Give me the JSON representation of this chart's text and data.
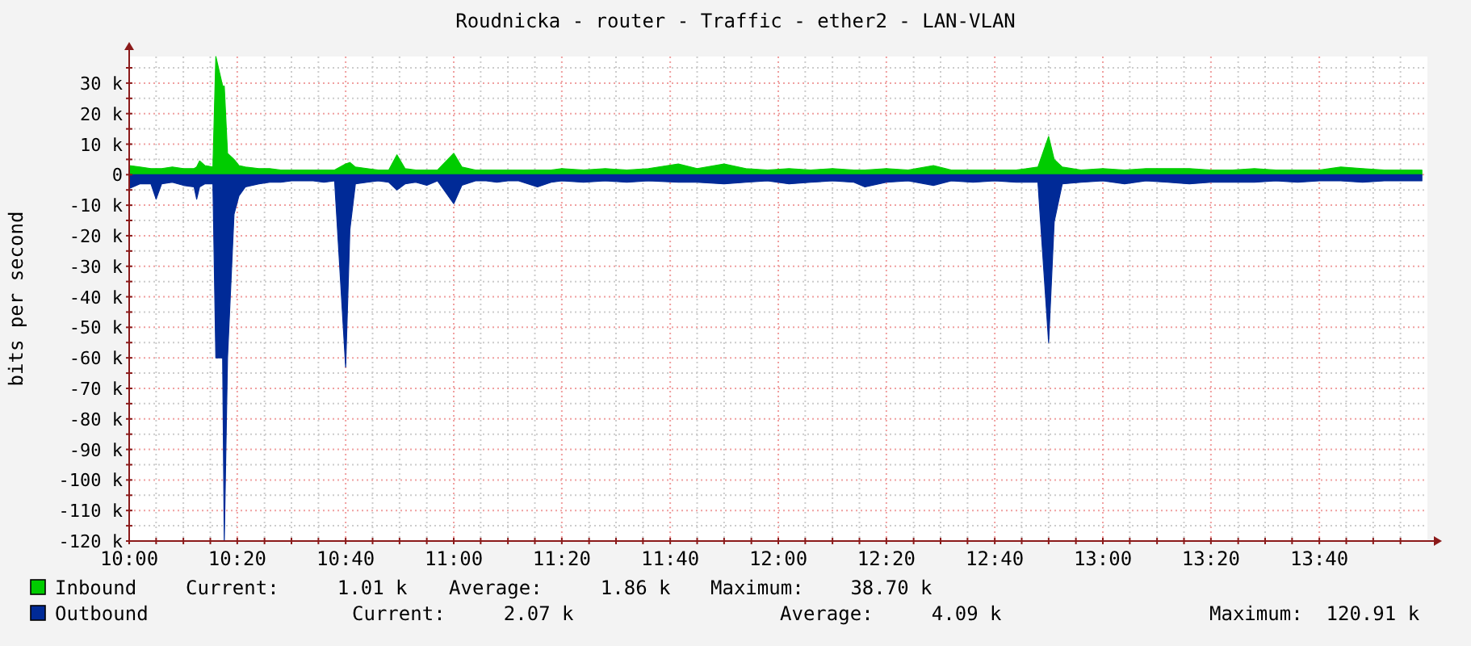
{
  "chart_data": {
    "type": "area",
    "title": "Roudnicka - router - Traffic - ether2 - LAN-VLAN",
    "ylabel": "bits per second",
    "x": [
      10,
      10.033,
      10.067,
      10.083,
      10.1,
      10.133,
      10.167,
      10.2,
      10.208,
      10.217,
      10.233,
      10.258,
      10.267,
      10.288,
      10.293,
      10.303,
      10.323,
      10.338,
      10.358,
      10.4,
      10.433,
      10.467,
      10.5,
      10.533,
      10.567,
      10.6,
      10.633,
      10.667,
      10.68,
      10.697,
      10.733,
      10.767,
      10.8,
      10.825,
      10.85,
      10.883,
      10.917,
      10.95,
      11,
      11.025,
      11.067,
      11.1,
      11.133,
      11.167,
      11.2,
      11.258,
      11.3,
      11.333,
      11.4,
      11.467,
      11.533,
      11.6,
      11.692,
      11.75,
      11.833,
      11.9,
      11.967,
      12.033,
      12.1,
      12.167,
      12.233,
      12.267,
      12.333,
      12.4,
      12.478,
      12.533,
      12.6,
      12.667,
      12.733,
      12.8,
      12.833,
      12.85,
      12.875,
      12.933,
      13,
      13.067,
      13.133,
      13.2,
      13.267,
      13.333,
      13.4,
      13.467,
      13.533,
      13.6,
      13.667,
      13.733,
      13.8,
      13.867,
      13.933,
      13.983
    ],
    "series": [
      {
        "name": "Inbound",
        "color": "#00cc00",
        "values": [
          3000,
          2500,
          2000,
          2000,
          2000,
          2500,
          2000,
          2000,
          2500,
          4500,
          3000,
          2500,
          38700,
          29000,
          29000,
          7000,
          5000,
          3000,
          2500,
          2000,
          2000,
          1500,
          1500,
          1500,
          1500,
          1500,
          1500,
          3500,
          4000,
          2500,
          2000,
          1500,
          1500,
          6500,
          2000,
          1500,
          1500,
          1500,
          7000,
          2500,
          1500,
          1500,
          1500,
          1500,
          1500,
          1500,
          1500,
          2000,
          1500,
          2000,
          1500,
          2000,
          3500,
          2000,
          3500,
          2000,
          1500,
          2000,
          1500,
          2000,
          1500,
          1500,
          2000,
          1500,
          3000,
          1500,
          1500,
          1500,
          1500,
          2500,
          12500,
          5000,
          2500,
          1500,
          2000,
          1500,
          2000,
          2000,
          2000,
          1500,
          1500,
          2000,
          1500,
          1500,
          1500,
          2500,
          2000,
          1500,
          1500,
          1500
        ]
      },
      {
        "name": "Outbound",
        "color": "#002a97",
        "values": [
          -4500,
          -3000,
          -3000,
          -8000,
          -3000,
          -2500,
          -3500,
          -4000,
          -8000,
          -4000,
          -3000,
          -3000,
          -60000,
          -60000,
          -120000,
          -60000,
          -13000,
          -7000,
          -4000,
          -3000,
          -2500,
          -2500,
          -2000,
          -2000,
          -2000,
          -2500,
          -2000,
          -63000,
          -18000,
          -3000,
          -2500,
          -2000,
          -2500,
          -5000,
          -3000,
          -2500,
          -3500,
          -2000,
          -9500,
          -3500,
          -2000,
          -2000,
          -2500,
          -2000,
          -2000,
          -4000,
          -2500,
          -2000,
          -2500,
          -2000,
          -2500,
          -2000,
          -2500,
          -2500,
          -3000,
          -2500,
          -2000,
          -3000,
          -2500,
          -2000,
          -2500,
          -4000,
          -2500,
          -2000,
          -3500,
          -2000,
          -2500,
          -2000,
          -2500,
          -2500,
          -55000,
          -15500,
          -3000,
          -2500,
          -2000,
          -3000,
          -2000,
          -2500,
          -3000,
          -2500,
          -2500,
          -2500,
          -2000,
          -2500,
          -2000,
          -2000,
          -2500,
          -2000,
          -2000,
          -2000
        ]
      }
    ],
    "xlim": [
      10,
      14
    ],
    "xticks": [
      {
        "value": 10,
        "label": "10:00"
      },
      {
        "value": 10.083,
        "label": null
      },
      {
        "value": 10.167,
        "label": null
      },
      {
        "value": 10.25,
        "label": null
      },
      {
        "value": 10.333,
        "label": "10:20"
      },
      {
        "value": 10.417,
        "label": null
      },
      {
        "value": 10.5,
        "label": null
      },
      {
        "value": 10.583,
        "label": null
      },
      {
        "value": 10.667,
        "label": "10:40"
      },
      {
        "value": 10.75,
        "label": null
      },
      {
        "value": 10.833,
        "label": null
      },
      {
        "value": 10.917,
        "label": null
      },
      {
        "value": 11,
        "label": "11:00"
      },
      {
        "value": 11.083,
        "label": null
      },
      {
        "value": 11.167,
        "label": null
      },
      {
        "value": 11.25,
        "label": null
      },
      {
        "value": 11.333,
        "label": "11:20"
      },
      {
        "value": 11.417,
        "label": null
      },
      {
        "value": 11.5,
        "label": null
      },
      {
        "value": 11.583,
        "label": null
      },
      {
        "value": 11.667,
        "label": "11:40"
      },
      {
        "value": 11.75,
        "label": null
      },
      {
        "value": 11.833,
        "label": null
      },
      {
        "value": 11.917,
        "label": null
      },
      {
        "value": 12,
        "label": "12:00"
      },
      {
        "value": 12.083,
        "label": null
      },
      {
        "value": 12.167,
        "label": null
      },
      {
        "value": 12.25,
        "label": null
      },
      {
        "value": 12.333,
        "label": "12:20"
      },
      {
        "value": 12.417,
        "label": null
      },
      {
        "value": 12.5,
        "label": null
      },
      {
        "value": 12.583,
        "label": null
      },
      {
        "value": 12.667,
        "label": "12:40"
      },
      {
        "value": 12.75,
        "label": null
      },
      {
        "value": 12.833,
        "label": null
      },
      {
        "value": 12.917,
        "label": null
      },
      {
        "value": 13,
        "label": "13:00"
      },
      {
        "value": 13.083,
        "label": null
      },
      {
        "value": 13.167,
        "label": null
      },
      {
        "value": 13.25,
        "label": null
      },
      {
        "value": 13.333,
        "label": "13:20"
      },
      {
        "value": 13.417,
        "label": null
      },
      {
        "value": 13.5,
        "label": null
      },
      {
        "value": 13.583,
        "label": null
      },
      {
        "value": 13.667,
        "label": "13:40"
      },
      {
        "value": 13.75,
        "label": null
      },
      {
        "value": 13.833,
        "label": null
      },
      {
        "value": 13.917,
        "label": null
      }
    ],
    "ylim": [
      -120000,
      38700
    ],
    "yticks": [
      {
        "value": -120000,
        "label": "-120 k"
      },
      {
        "value": -115000,
        "label": null
      },
      {
        "value": -110000,
        "label": "-110 k"
      },
      {
        "value": -105000,
        "label": null
      },
      {
        "value": -100000,
        "label": "-100 k"
      },
      {
        "value": -95000,
        "label": null
      },
      {
        "value": -90000,
        "label": "-90 k"
      },
      {
        "value": -85000,
        "label": null
      },
      {
        "value": -80000,
        "label": "-80 k"
      },
      {
        "value": -75000,
        "label": null
      },
      {
        "value": -70000,
        "label": "-70 k"
      },
      {
        "value": -65000,
        "label": null
      },
      {
        "value": -60000,
        "label": "-60 k"
      },
      {
        "value": -55000,
        "label": null
      },
      {
        "value": -50000,
        "label": "-50 k"
      },
      {
        "value": -45000,
        "label": null
      },
      {
        "value": -40000,
        "label": "-40 k"
      },
      {
        "value": -35000,
        "label": null
      },
      {
        "value": -30000,
        "label": "-30 k"
      },
      {
        "value": -25000,
        "label": null
      },
      {
        "value": -20000,
        "label": "-20 k"
      },
      {
        "value": -15000,
        "label": null
      },
      {
        "value": -10000,
        "label": "-10 k"
      },
      {
        "value": -5000,
        "label": null
      },
      {
        "value": 0,
        "label": "0"
      },
      {
        "value": 5000,
        "label": null
      },
      {
        "value": 10000,
        "label": "10 k"
      },
      {
        "value": 15000,
        "label": null
      },
      {
        "value": 20000,
        "label": "20 k"
      },
      {
        "value": 25000,
        "label": null
      },
      {
        "value": 30000,
        "label": "30 k"
      },
      {
        "value": 35000,
        "label": null
      }
    ],
    "grid": true,
    "legend": "bottom",
    "annotations": [
      "Current:     1.01 k",
      "Average:     1.86 k",
      "Maximum:    38.70 k",
      "Current:     2.07 k",
      "Average:     4.09 k",
      "Maximum:  120.91 k"
    ]
  }
}
